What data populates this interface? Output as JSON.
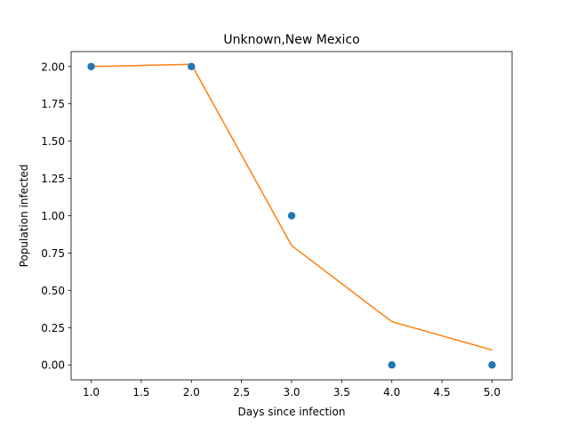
{
  "chart_data": {
    "type": "scatter",
    "title": "Unknown,New Mexico",
    "xlabel": "Days since infection",
    "ylabel": "Population infected",
    "xlim": [
      0.8,
      5.2
    ],
    "ylim": [
      -0.1,
      2.1
    ],
    "xticks": [
      "1.0",
      "1.5",
      "2.0",
      "2.5",
      "3.0",
      "3.5",
      "4.0",
      "4.5",
      "5.0"
    ],
    "yticks": [
      "0.00",
      "0.25",
      "0.50",
      "0.75",
      "1.00",
      "1.25",
      "1.50",
      "1.75",
      "2.00"
    ],
    "grid": false,
    "series": [
      {
        "kind": "scatter",
        "color": "#1f77b4",
        "x": [
          1,
          2,
          3,
          4,
          5
        ],
        "y": [
          2,
          2,
          1,
          0,
          0
        ]
      },
      {
        "kind": "line",
        "color": "#ff7f0e",
        "x": [
          1,
          2,
          3,
          4,
          5
        ],
        "y": [
          2.0,
          2.015,
          0.8,
          0.29,
          0.1
        ]
      }
    ]
  }
}
